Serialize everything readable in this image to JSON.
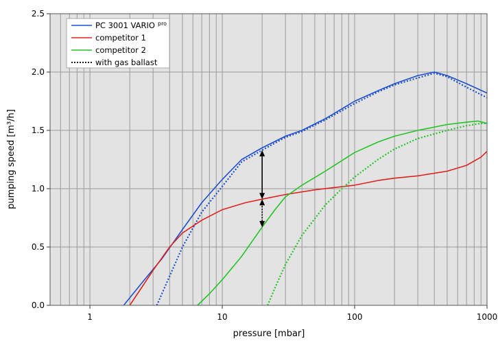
{
  "chart_data": {
    "type": "line",
    "title": "",
    "xlabel": "pressure [mbar]",
    "ylabel": "pumping speed [m³/h]",
    "x_scale": "log",
    "xlim": [
      0.5,
      1000
    ],
    "ylim": [
      0,
      2.5
    ],
    "x_ticks": [
      1,
      10,
      100,
      1000
    ],
    "x_tick_labels": [
      "1",
      "10",
      "100",
      "1000"
    ],
    "y_ticks": [
      0,
      0.5,
      1,
      1.5,
      2,
      2.5
    ],
    "y_tick_labels": [
      "0.0",
      "0.5",
      "1.0",
      "1.5",
      "2.0",
      "2.5"
    ],
    "grid": true,
    "legend_position": "top-left",
    "legend": [
      {
        "name": "PC 3001 VARIO",
        "sup": "pro",
        "color": "#1c4fcf",
        "style": "solid"
      },
      {
        "name": "competitor 1",
        "color": "#e0221c",
        "style": "solid"
      },
      {
        "name": "competitor 2",
        "color": "#22c422",
        "style": "solid"
      },
      {
        "name": "with gas ballast",
        "color": "#000000",
        "style": "dotted"
      }
    ],
    "series": [
      {
        "key": "vario",
        "color": "#1c4fcf",
        "style": "solid",
        "points": [
          [
            1.8,
            0
          ],
          [
            2.5,
            0.2
          ],
          [
            3.5,
            0.4
          ],
          [
            5,
            0.65
          ],
          [
            7,
            0.88
          ],
          [
            10,
            1.08
          ],
          [
            14,
            1.25
          ],
          [
            20,
            1.35
          ],
          [
            30,
            1.45
          ],
          [
            40,
            1.5
          ],
          [
            60,
            1.6
          ],
          [
            100,
            1.75
          ],
          [
            150,
            1.84
          ],
          [
            200,
            1.9
          ],
          [
            300,
            1.97
          ],
          [
            400,
            2.0
          ],
          [
            500,
            1.97
          ],
          [
            700,
            1.9
          ],
          [
            1000,
            1.82
          ]
        ]
      },
      {
        "key": "vario_gb",
        "color": "#1c4fcf",
        "style": "dotted",
        "points": [
          [
            3.2,
            0
          ],
          [
            4,
            0.25
          ],
          [
            5,
            0.5
          ],
          [
            7,
            0.8
          ],
          [
            10,
            1.02
          ],
          [
            14,
            1.23
          ],
          [
            20,
            1.33
          ],
          [
            30,
            1.44
          ],
          [
            40,
            1.49
          ],
          [
            60,
            1.59
          ],
          [
            100,
            1.73
          ],
          [
            150,
            1.83
          ],
          [
            200,
            1.89
          ],
          [
            300,
            1.95
          ],
          [
            400,
            1.99
          ],
          [
            500,
            1.96
          ],
          [
            700,
            1.87
          ],
          [
            1000,
            1.78
          ]
        ]
      },
      {
        "key": "comp1",
        "color": "#e0221c",
        "style": "solid",
        "points": [
          [
            2,
            0
          ],
          [
            3,
            0.3
          ],
          [
            4,
            0.5
          ],
          [
            5,
            0.62
          ],
          [
            7,
            0.73
          ],
          [
            10,
            0.82
          ],
          [
            15,
            0.88
          ],
          [
            20,
            0.91
          ],
          [
            30,
            0.95
          ],
          [
            50,
            0.99
          ],
          [
            100,
            1.03
          ],
          [
            150,
            1.07
          ],
          [
            200,
            1.09
          ],
          [
            300,
            1.11
          ],
          [
            500,
            1.15
          ],
          [
            700,
            1.2
          ],
          [
            900,
            1.27
          ],
          [
            1000,
            1.32
          ]
        ]
      },
      {
        "key": "comp2",
        "color": "#22c422",
        "style": "solid",
        "points": [
          [
            6.5,
            0
          ],
          [
            8,
            0.1
          ],
          [
            10,
            0.22
          ],
          [
            14,
            0.42
          ],
          [
            20,
            0.67
          ],
          [
            25,
            0.82
          ],
          [
            30,
            0.93
          ],
          [
            40,
            1.03
          ],
          [
            60,
            1.15
          ],
          [
            100,
            1.31
          ],
          [
            150,
            1.4
          ],
          [
            200,
            1.45
          ],
          [
            300,
            1.5
          ],
          [
            500,
            1.55
          ],
          [
            700,
            1.57
          ],
          [
            850,
            1.58
          ],
          [
            1000,
            1.56
          ]
        ]
      },
      {
        "key": "comp2_gb",
        "color": "#22c422",
        "style": "dotted",
        "points": [
          [
            22,
            0
          ],
          [
            25,
            0.15
          ],
          [
            30,
            0.35
          ],
          [
            40,
            0.6
          ],
          [
            60,
            0.86
          ],
          [
            80,
            1.0
          ],
          [
            100,
            1.1
          ],
          [
            150,
            1.25
          ],
          [
            200,
            1.34
          ],
          [
            300,
            1.43
          ],
          [
            500,
            1.5
          ],
          [
            700,
            1.54
          ],
          [
            900,
            1.56
          ],
          [
            1000,
            1.56
          ]
        ]
      }
    ],
    "annotation": {
      "type": "double-arrow",
      "x": 20,
      "y_top": 1.33,
      "y_mid": 0.91,
      "y_bottom": 0.67,
      "color": "#000000"
    }
  }
}
